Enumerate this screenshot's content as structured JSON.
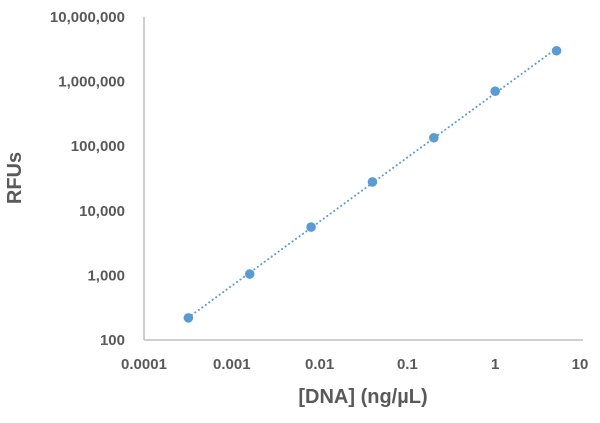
{
  "chart_data": {
    "type": "scatter",
    "title": "",
    "xlabel": "[DNA] (ng/µL)",
    "ylabel": "RFUs",
    "xscale": "log",
    "yscale": "log",
    "xlim": [
      0.0001,
      10
    ],
    "ylim": [
      100,
      10000000
    ],
    "x_ticks": [
      0.0001,
      0.001,
      0.01,
      0.1,
      1,
      10
    ],
    "x_tick_labels": [
      "0.0001",
      "0.001",
      "0.01",
      "0.1",
      "1",
      "10"
    ],
    "y_ticks": [
      100,
      1000,
      10000,
      100000,
      1000000,
      10000000
    ],
    "y_tick_labels": [
      "100",
      "1,000",
      "10,000",
      "100,000",
      "1,000,000",
      "10,000,000"
    ],
    "grid": false,
    "legend": null,
    "series": [
      {
        "name": "RFUs",
        "marker": "circle",
        "color": "#5B9BD5",
        "x": [
          0.00032,
          0.0016,
          0.008,
          0.04,
          0.2,
          1,
          5
        ],
        "y": [
          220,
          1050,
          5600,
          28000,
          135000,
          710000,
          3000000
        ]
      }
    ],
    "trendline": {
      "type": "power",
      "style": "dotted",
      "color": "#5B9BD5"
    }
  },
  "colors": {
    "marker": "#5B9BD5",
    "axis_line": "#BFBFBF",
    "text": "#595959",
    "background": "#FFFFFF"
  }
}
